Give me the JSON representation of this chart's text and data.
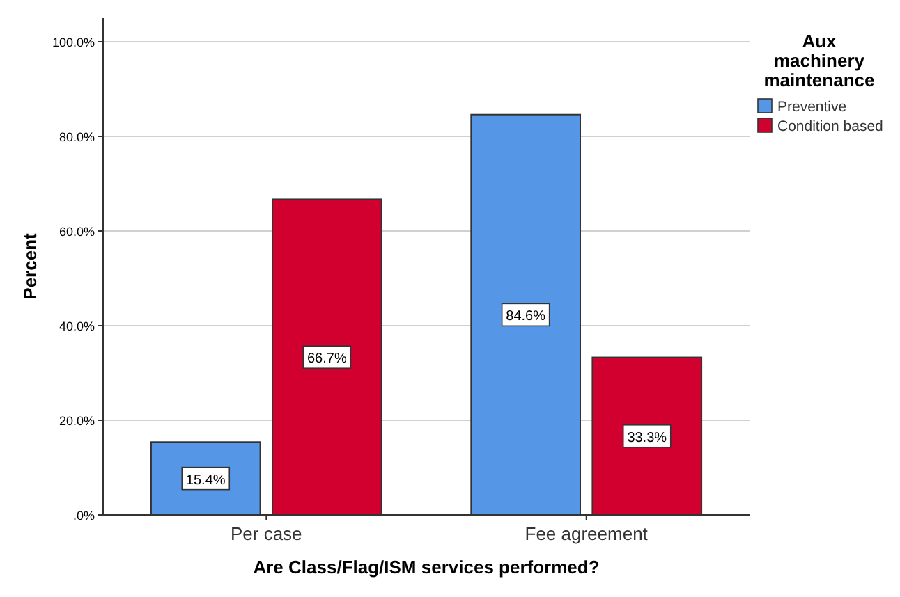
{
  "chart_data": {
    "type": "bar",
    "xlabel": "Are Class/Flag/ISM services performed?",
    "ylabel": "Percent",
    "legend_title": "Aux machinery maintenance",
    "categories": [
      "Per case",
      "Fee agreement"
    ],
    "series": [
      {
        "name": "Preventive",
        "color": "#5596e6",
        "values": [
          15.4,
          84.6
        ],
        "value_labels": [
          "15.4%",
          "84.6%"
        ]
      },
      {
        "name": "Condition based",
        "color": "#d1002f",
        "values": [
          66.7,
          33.3
        ],
        "value_labels": [
          "66.7%",
          "33.3%"
        ]
      }
    ],
    "ylim": [
      0,
      105
    ],
    "yticks": [
      {
        "value": 0,
        "label": ".0%"
      },
      {
        "value": 20,
        "label": "20.0%"
      },
      {
        "value": 40,
        "label": "40.0%"
      },
      {
        "value": 60,
        "label": "60.0%"
      },
      {
        "value": 80,
        "label": "80.0%"
      },
      {
        "value": 100,
        "label": "100.0%"
      }
    ],
    "grid": "y",
    "legend": "top right"
  }
}
